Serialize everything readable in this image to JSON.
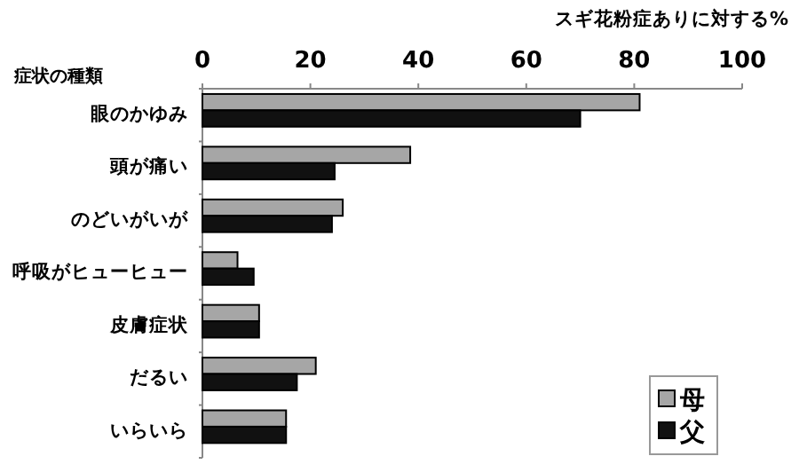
{
  "chart_data": {
    "type": "bar",
    "orientation": "horizontal",
    "xlabel": "スギ花粉症ありに対する%",
    "ylabel": "症状の種類",
    "categories": [
      "眼のかゆみ",
      "頭が痛い",
      "のどいがいが",
      "呼吸がヒューヒュー",
      "皮膚症状",
      "だるい",
      "いらいら"
    ],
    "series": [
      {
        "name": "母",
        "color": "#a6a6a6",
        "values": [
          81,
          38.5,
          26,
          6.5,
          10.5,
          21,
          15.5
        ]
      },
      {
        "name": "父",
        "color": "#111111",
        "values": [
          70,
          24.5,
          24,
          9.5,
          10.5,
          17.5,
          15.5
        ]
      }
    ],
    "xlim": [
      0,
      100
    ],
    "xticks": [
      0,
      20,
      40,
      60,
      80,
      100
    ],
    "grid": false,
    "legend": "bottom right"
  }
}
